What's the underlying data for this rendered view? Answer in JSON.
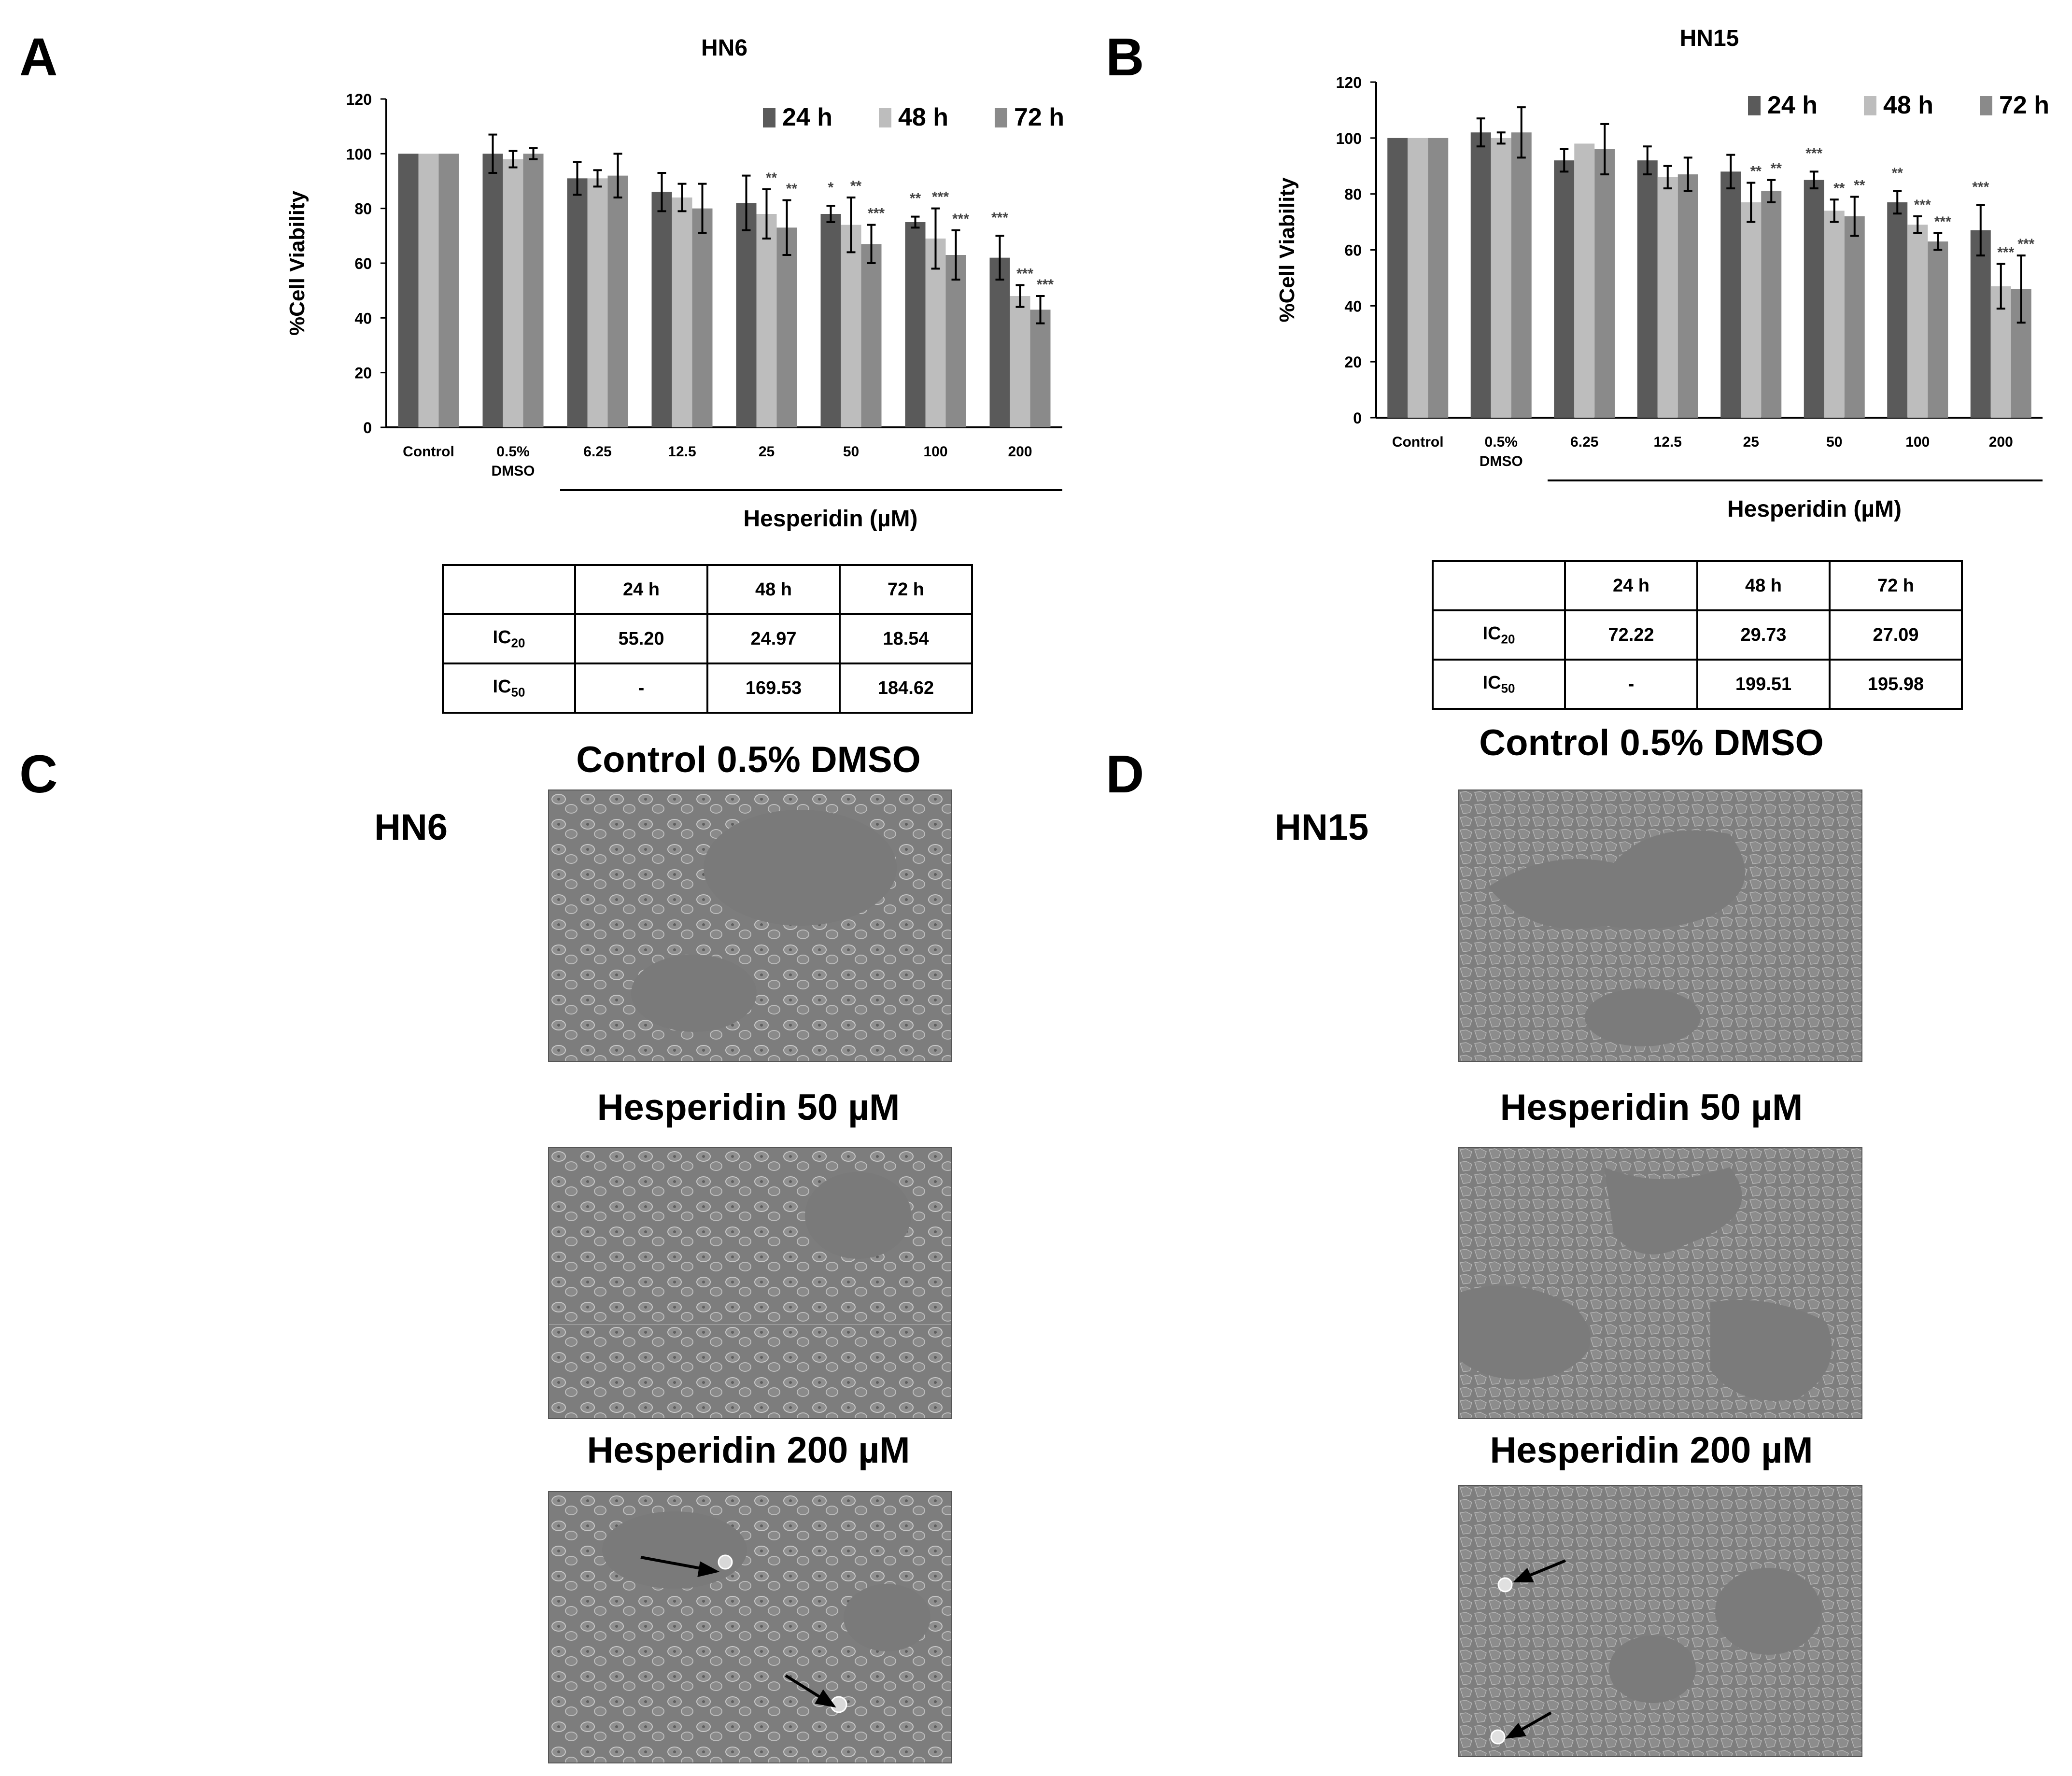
{
  "panels": {
    "A": "A",
    "B": "B",
    "C": "C",
    "D": "D"
  },
  "colors": {
    "h24": "#5a5a5a",
    "h48": "#bdbdbd",
    "h72": "#8a8a8a",
    "error": "#000000"
  },
  "chart_data": [
    {
      "type": "bar",
      "title": "HN6",
      "ylabel": "%Cell Viability",
      "xlabel": "Hesperidin (µM)",
      "ylim": [
        0,
        120
      ],
      "yticks": [
        "0",
        "20",
        "40",
        "60",
        "80",
        "100",
        "120"
      ],
      "categories": [
        "Control",
        "0.5% DMSO",
        "6.25",
        "12.5",
        "25",
        "50",
        "100",
        "200"
      ],
      "legend": [
        "24 h",
        "48  h",
        "72  h"
      ],
      "series": [
        {
          "name": "24 h",
          "values": [
            100,
            100,
            91,
            86,
            82,
            78,
            75,
            62
          ],
          "errors": [
            0,
            7,
            6,
            7,
            10,
            3,
            2,
            8
          ]
        },
        {
          "name": "48  h",
          "values": [
            100,
            98,
            91,
            84,
            78,
            74,
            69,
            48
          ],
          "errors": [
            0,
            3,
            3,
            5,
            9,
            10,
            11,
            4
          ]
        },
        {
          "name": "72  h",
          "values": [
            100,
            100,
            92,
            80,
            73,
            67,
            63,
            43
          ],
          "errors": [
            0,
            2,
            8,
            9,
            10,
            7,
            9,
            5
          ]
        }
      ],
      "significance": [
        [
          "",
          "",
          "",
          "",
          "",
          "*",
          "**",
          "***"
        ],
        [
          "",
          "",
          "",
          "",
          "**",
          "**",
          "***",
          "***"
        ],
        [
          "",
          "",
          "",
          "",
          "**",
          "***",
          "***",
          "***"
        ]
      ]
    },
    {
      "type": "bar",
      "title": "HN15",
      "ylabel": "%Cell Viability",
      "xlabel": "Hesperidin (µM)",
      "ylim": [
        0,
        120
      ],
      "yticks": [
        "0",
        "20",
        "40",
        "60",
        "80",
        "100",
        "120"
      ],
      "categories": [
        "Control",
        "0.5% DMSO",
        "6.25",
        "12.5",
        "25",
        "50",
        "100",
        "200"
      ],
      "legend": [
        "24 h",
        "48  h",
        "72  h"
      ],
      "series": [
        {
          "name": "24 h",
          "values": [
            100,
            102,
            92,
            92,
            88,
            85,
            77,
            67
          ],
          "errors": [
            0,
            5,
            4,
            5,
            6,
            3,
            4,
            9
          ]
        },
        {
          "name": "48  h",
          "values": [
            100,
            100,
            98,
            86,
            77,
            74,
            69,
            47
          ],
          "errors": [
            0,
            2,
            0,
            4,
            7,
            4,
            3,
            8
          ]
        },
        {
          "name": "72  h",
          "values": [
            100,
            102,
            96,
            87,
            81,
            72,
            63,
            46
          ],
          "errors": [
            0,
            9,
            9,
            6,
            4,
            7,
            3,
            12
          ]
        }
      ],
      "significance": [
        [
          "",
          "",
          "",
          "",
          "",
          "***",
          "**",
          "***"
        ],
        [
          "",
          "",
          "",
          "",
          "**",
          "**",
          "***",
          "***"
        ],
        [
          "",
          "",
          "",
          "",
          "**",
          "**",
          "***",
          "***"
        ]
      ]
    }
  ],
  "tables": {
    "A": {
      "headers": [
        "",
        "24 h",
        "48 h",
        "72 h"
      ],
      "rows": [
        {
          "label_main": "IC",
          "label_sub": "20",
          "values": [
            "55.20",
            "24.97",
            "18.54"
          ]
        },
        {
          "label_main": "IC",
          "label_sub": "50",
          "values": [
            "-",
            "169.53",
            "184.62"
          ]
        }
      ]
    },
    "B": {
      "headers": [
        "",
        "24 h",
        "48 h",
        "72 h"
      ],
      "rows": [
        {
          "label_main": "IC",
          "label_sub": "20",
          "values": [
            "72.22",
            "29.73",
            "27.09"
          ]
        },
        {
          "label_main": "IC",
          "label_sub": "50",
          "values": [
            "-",
            "199.51",
            "195.98"
          ]
        }
      ]
    }
  },
  "micrographs": {
    "C": {
      "cell_line": "HN6",
      "titles": [
        "Control 0.5% DMSO",
        "Hesperidin 50 µM",
        "Hesperidin 200 µM"
      ]
    },
    "D": {
      "cell_line": "HN15",
      "titles": [
        "Control 0.5% DMSO",
        "Hesperidin 50 µM",
        "Hesperidin 200 µM"
      ]
    }
  }
}
